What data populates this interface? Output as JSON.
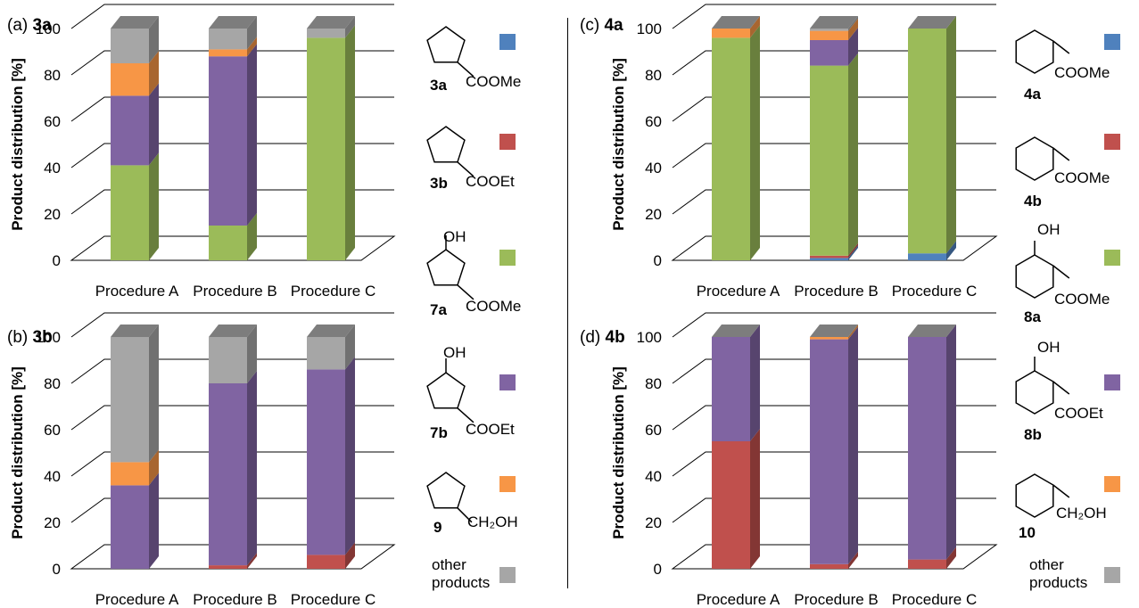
{
  "figure": {
    "y_axis_label": "Product distribution [%]"
  },
  "colors": {
    "blue": "#4F81BD",
    "red": "#C0504D",
    "green": "#9BBB59",
    "purple": "#8064A2",
    "orange": "#F79646",
    "gray": "#A6A6A6"
  },
  "chart_data": [
    {
      "type": "bar",
      "stacked": true,
      "panel_letter": "(a)",
      "panel_compound": "3a",
      "ylabel": "Product distribution [%]",
      "ylim": [
        0,
        100
      ],
      "yticks": [
        "0",
        "20",
        "40",
        "60",
        "80",
        "100"
      ],
      "categories": [
        "Procedure A",
        "Procedure B",
        "Procedure C"
      ],
      "grid": true,
      "series": [
        {
          "key": "blue",
          "values": [
            0,
            0,
            0
          ]
        },
        {
          "key": "red",
          "values": [
            0,
            0,
            0
          ]
        },
        {
          "key": "green",
          "values": [
            41,
            15,
            96
          ]
        },
        {
          "key": "purple",
          "values": [
            30,
            73,
            0
          ]
        },
        {
          "key": "orange",
          "values": [
            14,
            3,
            0
          ]
        },
        {
          "key": "gray",
          "values": [
            15,
            9,
            4
          ]
        }
      ]
    },
    {
      "type": "bar",
      "stacked": true,
      "panel_letter": "(b)",
      "panel_compound": "3b",
      "ylabel": "Product distribution [%]",
      "ylim": [
        0,
        100
      ],
      "yticks": [
        "0",
        "20",
        "40",
        "60",
        "80",
        "100"
      ],
      "categories": [
        "Procedure A",
        "Procedure B",
        "Procedure C"
      ],
      "grid": true,
      "series": [
        {
          "key": "blue",
          "values": [
            0,
            0,
            0
          ]
        },
        {
          "key": "red",
          "values": [
            0,
            1.5,
            6
          ]
        },
        {
          "key": "green",
          "values": [
            0,
            0,
            0
          ]
        },
        {
          "key": "purple",
          "values": [
            36,
            78.5,
            80
          ]
        },
        {
          "key": "orange",
          "values": [
            10,
            0,
            0
          ]
        },
        {
          "key": "gray",
          "values": [
            54,
            20,
            14
          ]
        }
      ]
    },
    {
      "type": "bar",
      "stacked": true,
      "panel_letter": "(c)",
      "panel_compound": "4a",
      "ylabel": "Product distribution [%]",
      "ylim": [
        0,
        100
      ],
      "yticks": [
        "0",
        "20",
        "40",
        "60",
        "80",
        "100"
      ],
      "categories": [
        "Procedure A",
        "Procedure B",
        "Procedure C"
      ],
      "grid": true,
      "series": [
        {
          "key": "blue",
          "values": [
            0,
            1,
            3
          ]
        },
        {
          "key": "red",
          "values": [
            0,
            1,
            0
          ]
        },
        {
          "key": "green",
          "values": [
            96,
            82,
            97
          ]
        },
        {
          "key": "purple",
          "values": [
            0,
            11,
            0
          ]
        },
        {
          "key": "orange",
          "values": [
            4,
            4,
            0
          ]
        },
        {
          "key": "gray",
          "values": [
            0,
            1,
            0
          ]
        }
      ]
    },
    {
      "type": "bar",
      "stacked": true,
      "panel_letter": "(d)",
      "panel_compound": "4b",
      "ylabel": "Product distribution [%]",
      "ylim": [
        0,
        100
      ],
      "yticks": [
        "0",
        "20",
        "40",
        "60",
        "80",
        "100"
      ],
      "categories": [
        "Procedure A",
        "Procedure B",
        "Procedure C"
      ],
      "grid": true,
      "series": [
        {
          "key": "blue",
          "values": [
            0,
            0,
            0
          ]
        },
        {
          "key": "red",
          "values": [
            55,
            2,
            4
          ]
        },
        {
          "key": "green",
          "values": [
            0,
            0,
            0
          ]
        },
        {
          "key": "purple",
          "values": [
            45,
            97,
            96
          ]
        },
        {
          "key": "orange",
          "values": [
            0,
            1,
            0
          ]
        },
        {
          "key": "gray",
          "values": [
            0,
            0,
            0
          ]
        }
      ]
    }
  ],
  "legend_left": [
    {
      "color": "blue",
      "compound": "3a",
      "substituent": "COOMe",
      "hydroxy": ""
    },
    {
      "color": "red",
      "compound": "3b",
      "substituent": "COOEt",
      "hydroxy": ""
    },
    {
      "color": "green",
      "compound": "7a",
      "substituent": "COOMe",
      "hydroxy": "OH"
    },
    {
      "color": "purple",
      "compound": "7b",
      "substituent": "COOEt",
      "hydroxy": "OH"
    },
    {
      "color": "orange",
      "compound": "9",
      "substituent": "CH₂OH",
      "hydroxy": ""
    },
    {
      "color": "gray",
      "line1": "other",
      "line2": "products"
    }
  ],
  "legend_right": [
    {
      "color": "blue",
      "compound": "4a",
      "substituent": "COOMe",
      "hydroxy": ""
    },
    {
      "color": "red",
      "compound": "4b",
      "substituent": "COOMe",
      "hydroxy": ""
    },
    {
      "color": "green",
      "compound": "8a",
      "substituent": "COOMe",
      "hydroxy": "OH"
    },
    {
      "color": "purple",
      "compound": "8b",
      "substituent": "COOEt",
      "hydroxy": "OH"
    },
    {
      "color": "orange",
      "compound": "10",
      "substituent": "CH₂OH",
      "hydroxy": ""
    },
    {
      "color": "gray",
      "line1": "other",
      "line2": "products"
    }
  ]
}
